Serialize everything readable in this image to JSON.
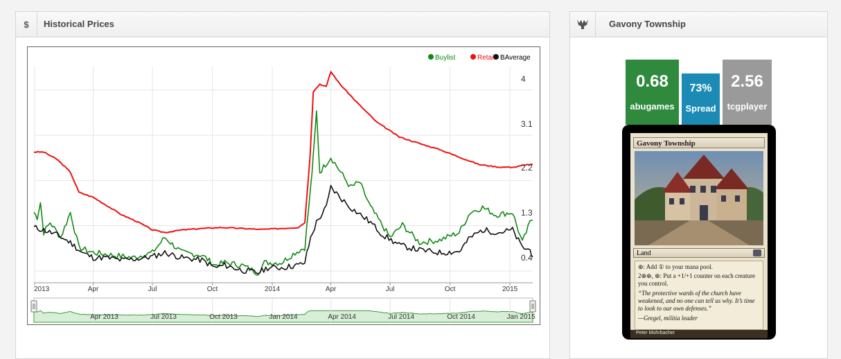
{
  "left_panel": {
    "icon": "$",
    "title": "Historical Prices"
  },
  "right_panel": {
    "icon_name": "gavony-township-icon",
    "title": "Gavony Township"
  },
  "tiles": [
    {
      "value": "0.68",
      "label": "abugames",
      "color": "#2f8a3e"
    },
    {
      "value": "73%",
      "label": "Spread",
      "color": "#1b8bb5"
    },
    {
      "value": "2.56",
      "label": "tcgplayer",
      "color": "#9a9a9a"
    }
  ],
  "card": {
    "name": "Gavony Township",
    "type_line": "Land",
    "ability1": "⊕: Add ① to your mana pool.",
    "ability2": "2⊕⊕, ⊕: Put a +1/+1 counter on each creature you control.",
    "flavor": "“The protective wards of the church have weakened, and no one can tell us why. It’s time to look to our own defenses.”",
    "flavor_attr": "—Gregel, militia leader",
    "artist": "Peter Mohrbacher"
  },
  "chart_data": {
    "type": "line",
    "legend": [
      "Buylist",
      "Retail",
      "BAverage"
    ],
    "legend_position": "top-right",
    "y_ticks": [
      "4",
      "3.1",
      "2.2",
      "1.3",
      "0.4"
    ],
    "y_tick_values": [
      4,
      3.1,
      2.2,
      1.3,
      0.4
    ],
    "ylim": [
      0.0,
      4.3
    ],
    "x_ticks": [
      "2013",
      "Apr",
      "Jul",
      "Oct",
      "2014",
      "Apr",
      "Jul",
      "Oct",
      "2015"
    ],
    "x_tick_values": [
      "2013-01-01",
      "2013-04-01",
      "2013-07-01",
      "2013-10-01",
      "2014-01-01",
      "2014-04-01",
      "2014-07-01",
      "2014-10-01",
      "2015-01-01"
    ],
    "x_range": [
      "2012-12-31",
      "2015-02-05"
    ],
    "navigator_ticks": [
      "Apr 2013",
      "Jul 2013",
      "Oct 2013",
      "Jan 2014",
      "Apr 2014",
      "Jul 2014",
      "Oct 2014",
      "Jan 2015"
    ],
    "grid": true,
    "series": [
      {
        "name": "Retail",
        "color": "#ee1111",
        "points": [
          [
            "2012-12-31",
            2.6
          ],
          [
            "2013-01-15",
            2.6
          ],
          [
            "2013-02-05",
            2.45
          ],
          [
            "2013-02-25",
            2.2
          ],
          [
            "2013-03-10",
            1.8
          ],
          [
            "2013-04-01",
            1.7
          ],
          [
            "2013-04-20",
            1.55
          ],
          [
            "2013-05-15",
            1.35
          ],
          [
            "2013-06-10",
            1.2
          ],
          [
            "2013-07-01",
            1.05
          ],
          [
            "2013-07-20",
            1.0
          ],
          [
            "2013-08-15",
            1.05
          ],
          [
            "2013-09-15",
            1.08
          ],
          [
            "2013-10-15",
            1.1
          ],
          [
            "2013-11-15",
            1.08
          ],
          [
            "2013-12-15",
            1.06
          ],
          [
            "2014-01-15",
            1.08
          ],
          [
            "2014-02-10",
            1.1
          ],
          [
            "2014-02-20",
            1.2
          ],
          [
            "2014-02-28",
            2.5
          ],
          [
            "2014-03-05",
            3.8
          ],
          [
            "2014-03-15",
            3.95
          ],
          [
            "2014-03-25",
            3.9
          ],
          [
            "2014-04-01",
            4.2
          ],
          [
            "2014-04-15",
            3.95
          ],
          [
            "2014-05-10",
            3.6
          ],
          [
            "2014-06-10",
            3.2
          ],
          [
            "2014-07-15",
            2.9
          ],
          [
            "2014-08-20",
            2.75
          ],
          [
            "2014-09-15",
            2.65
          ],
          [
            "2014-10-15",
            2.5
          ],
          [
            "2014-11-15",
            2.35
          ],
          [
            "2014-12-15",
            2.3
          ],
          [
            "2015-01-10",
            2.3
          ],
          [
            "2015-01-25",
            2.35
          ],
          [
            "2015-02-05",
            2.35
          ]
        ]
      },
      {
        "name": "Buylist",
        "color": "#118811",
        "points": [
          [
            "2012-12-31",
            1.4
          ],
          [
            "2013-01-05",
            1.3
          ],
          [
            "2013-01-10",
            1.6
          ],
          [
            "2013-01-15",
            1.0
          ],
          [
            "2013-01-25",
            1.2
          ],
          [
            "2013-02-10",
            0.9
          ],
          [
            "2013-02-25",
            1.4
          ],
          [
            "2013-03-10",
            0.7
          ],
          [
            "2013-04-01",
            0.6
          ],
          [
            "2013-05-01",
            0.55
          ],
          [
            "2013-06-01",
            0.5
          ],
          [
            "2013-07-01",
            0.6
          ],
          [
            "2013-07-20",
            0.9
          ],
          [
            "2013-08-15",
            0.6
          ],
          [
            "2013-09-15",
            0.55
          ],
          [
            "2013-10-05",
            0.35
          ],
          [
            "2013-10-20",
            0.4
          ],
          [
            "2013-11-15",
            0.35
          ],
          [
            "2013-12-10",
            0.2
          ],
          [
            "2013-12-20",
            0.4
          ],
          [
            "2014-01-15",
            0.4
          ],
          [
            "2014-02-05",
            0.6
          ],
          [
            "2014-02-20",
            0.7
          ],
          [
            "2014-03-01",
            1.9
          ],
          [
            "2014-03-05",
            2.5
          ],
          [
            "2014-03-10",
            3.4
          ],
          [
            "2014-03-15",
            2.2
          ],
          [
            "2014-04-01",
            2.5
          ],
          [
            "2014-05-01",
            1.9
          ],
          [
            "2014-05-15",
            2.0
          ],
          [
            "2014-06-01",
            1.5
          ],
          [
            "2014-07-01",
            0.9
          ],
          [
            "2014-07-20",
            1.15
          ],
          [
            "2014-08-15",
            0.8
          ],
          [
            "2014-09-15",
            0.85
          ],
          [
            "2014-10-15",
            1.0
          ],
          [
            "2014-11-01",
            1.4
          ],
          [
            "2014-11-20",
            1.5
          ],
          [
            "2014-12-10",
            1.35
          ],
          [
            "2015-01-05",
            1.4
          ],
          [
            "2015-01-20",
            0.8
          ],
          [
            "2015-02-01",
            1.2
          ],
          [
            "2015-02-05",
            1.3
          ]
        ]
      },
      {
        "name": "BAverage",
        "color": "#111111",
        "points": [
          [
            "2012-12-31",
            1.1
          ],
          [
            "2013-01-15",
            1.05
          ],
          [
            "2013-02-05",
            0.95
          ],
          [
            "2013-02-25",
            0.8
          ],
          [
            "2013-03-15",
            0.6
          ],
          [
            "2013-04-01",
            0.5
          ],
          [
            "2013-04-20",
            0.5
          ],
          [
            "2013-05-15",
            0.45
          ],
          [
            "2013-06-10",
            0.48
          ],
          [
            "2013-07-01",
            0.52
          ],
          [
            "2013-07-20",
            0.6
          ],
          [
            "2013-08-15",
            0.5
          ],
          [
            "2013-09-15",
            0.45
          ],
          [
            "2013-10-05",
            0.3
          ],
          [
            "2013-10-20",
            0.35
          ],
          [
            "2013-11-15",
            0.25
          ],
          [
            "2013-12-10",
            0.2
          ],
          [
            "2013-12-25",
            0.3
          ],
          [
            "2014-01-15",
            0.3
          ],
          [
            "2014-02-10",
            0.35
          ],
          [
            "2014-02-20",
            0.4
          ],
          [
            "2014-03-01",
            0.9
          ],
          [
            "2014-03-10",
            1.2
          ],
          [
            "2014-03-25",
            1.5
          ],
          [
            "2014-04-01",
            1.9
          ],
          [
            "2014-04-15",
            1.7
          ],
          [
            "2014-05-01",
            1.5
          ],
          [
            "2014-06-01",
            1.2
          ],
          [
            "2014-06-20",
            0.95
          ],
          [
            "2014-07-15",
            0.75
          ],
          [
            "2014-08-15",
            0.65
          ],
          [
            "2014-09-15",
            0.6
          ],
          [
            "2014-10-15",
            0.62
          ],
          [
            "2014-11-01",
            0.9
          ],
          [
            "2014-11-20",
            1.05
          ],
          [
            "2014-12-15",
            1.0
          ],
          [
            "2015-01-05",
            1.05
          ],
          [
            "2015-01-20",
            0.7
          ],
          [
            "2015-02-01",
            0.65
          ],
          [
            "2015-02-05",
            0.55
          ]
        ]
      }
    ]
  }
}
